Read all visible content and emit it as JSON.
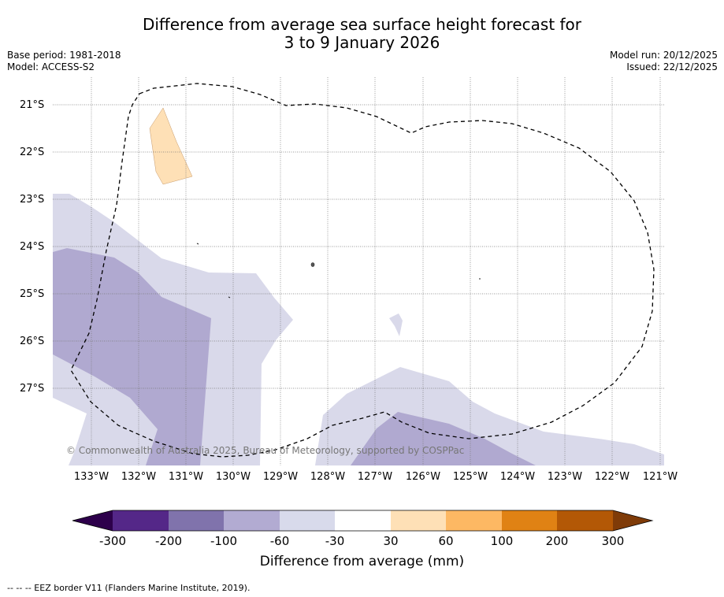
{
  "title": {
    "line1": "Difference from average sea surface height forecast for",
    "line2": "3 to 9 January 2026"
  },
  "meta": {
    "base_period": "Base period: 1981-2018",
    "model": "Model: ACCESS-S2",
    "model_run": "Model run: 20/12/2025",
    "issued": "Issued: 22/12/2025"
  },
  "map": {
    "latitude_labels": [
      "21°S",
      "22°S",
      "23°S",
      "24°S",
      "25°S",
      "26°S",
      "27°S"
    ],
    "longitude_labels": [
      "133°W",
      "132°W",
      "131°W",
      "130°W",
      "129°W",
      "128°W",
      "127°W",
      "126°W",
      "125°W",
      "124°W",
      "123°W",
      "122°W",
      "121°W"
    ],
    "copyright": "© Commonwealth of Australia 2025, Bureau of Meteorology, supported by COSPPac",
    "colors": {
      "lavender": "#d9d9ea",
      "mid_purple": "#b0a9d0",
      "peach": "#fee0b6"
    }
  },
  "colorbar": {
    "ticks": [
      "-300",
      "-200",
      "-100",
      "-60",
      "-30",
      "30",
      "60",
      "100",
      "200",
      "300"
    ],
    "label": "Difference from average (mm)",
    "colors": [
      "#2d004b",
      "#542788",
      "#8073ac",
      "#b2abd2",
      "#d8daeb",
      "#ffffff",
      "#fee0b6",
      "#fdb863",
      "#e08214",
      "#b35806",
      "#7f3b08"
    ]
  },
  "footer": "--  --  -- EEZ border V11 (Flanders Marine Institute, 2019)."
}
